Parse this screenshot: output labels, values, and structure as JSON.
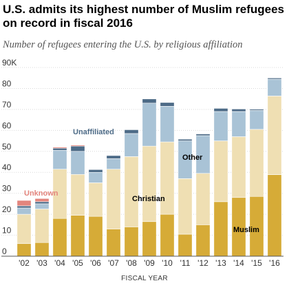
{
  "title": "U.S. admits its highest number of Muslim refugees on record in fiscal 2016",
  "subtitle": "Number of refugees entering the U.S. by religious affiliation",
  "colors": {
    "muslim": "#d6ab37",
    "christian": "#efdfb3",
    "other": "#a9c3d6",
    "unaffiliated": "#4d6b87",
    "unknown": "#e3857d",
    "grid": "#d8d8d8",
    "axis": "#555555"
  },
  "chart_data": {
    "type": "bar",
    "stacked": true,
    "categories": [
      "'02",
      "'03",
      "'04",
      "'05",
      "'06",
      "'07",
      "'08",
      "'09",
      "'10",
      "'11",
      "'12",
      "'13",
      "'14",
      "'15",
      "'16"
    ],
    "series": [
      {
        "name": "Muslim",
        "key": "muslim",
        "values": [
          6,
          6.5,
          18,
          19.5,
          19,
          13,
          14,
          16.5,
          20,
          10.5,
          15,
          26,
          28,
          28.5,
          38.9
        ]
      },
      {
        "name": "Christian",
        "key": "christian",
        "values": [
          14,
          16,
          23.5,
          19.5,
          16,
          28.5,
          33.5,
          36,
          34.5,
          26.5,
          24.5,
          29,
          29,
          32,
          37.5
        ]
      },
      {
        "name": "Other",
        "key": "other",
        "values": [
          3,
          2.5,
          9,
          11,
          5,
          5,
          11,
          20.5,
          17,
          18,
          18,
          14,
          12,
          9,
          8
        ]
      },
      {
        "name": "Unaffiliated",
        "key": "unaffiliated",
        "values": [
          1,
          1,
          1,
          2.5,
          1.3,
          1.5,
          1.8,
          2,
          1.8,
          0.8,
          0.8,
          1.5,
          1.2,
          0.6,
          0.6
        ]
      },
      {
        "name": "Unknown",
        "key": "unknown",
        "values": [
          2.6,
          1.5,
          0.5,
          0.5,
          0,
          0,
          0,
          0,
          0,
          0,
          0,
          0,
          0,
          0,
          0
        ]
      }
    ],
    "ylim": [
      0,
      90
    ],
    "yticks": [
      "0",
      "10",
      "20",
      "30",
      "40",
      "50",
      "60",
      "70",
      "80",
      "90K"
    ],
    "xlabel": "FISCAL YEAR",
    "ylabel": "",
    "grid": true,
    "annotations": {
      "unknown": "Unknown",
      "unaffiliated": "Unaffiliated",
      "other": "Other",
      "christian": "Christian",
      "muslim": "Muslim"
    }
  }
}
